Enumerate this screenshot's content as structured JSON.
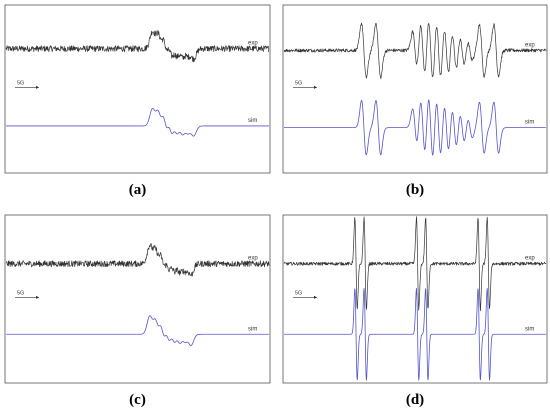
{
  "chart_data": [
    {
      "type": "line",
      "caption": "(a)",
      "scale_bar": "5G",
      "series": [
        {
          "name": "exp",
          "color": "#333333",
          "noise": 0.09,
          "lines": [
            {
              "pos": 0.565,
              "amp": 0.42,
              "w": 0.011
            },
            {
              "pos": 0.585,
              "amp": 0.78,
              "w": 0.011
            },
            {
              "pos": 0.605,
              "amp": 1.0,
              "w": 0.011
            },
            {
              "pos": 0.625,
              "amp": 0.95,
              "w": 0.011
            },
            {
              "pos": 0.645,
              "amp": 0.78,
              "w": 0.011
            },
            {
              "pos": 0.665,
              "amp": 0.62,
              "w": 0.011
            },
            {
              "pos": 0.685,
              "amp": 0.42,
              "w": 0.011
            },
            {
              "pos": 0.705,
              "amp": 0.25,
              "w": 0.011
            }
          ]
        },
        {
          "name": "sim",
          "color": "#5555cc",
          "noise": 0.0,
          "lines": [
            {
              "pos": 0.565,
              "amp": 0.42,
              "w": 0.011
            },
            {
              "pos": 0.585,
              "amp": 0.78,
              "w": 0.011
            },
            {
              "pos": 0.605,
              "amp": 1.0,
              "w": 0.011
            },
            {
              "pos": 0.625,
              "amp": 0.95,
              "w": 0.011
            },
            {
              "pos": 0.645,
              "amp": 0.78,
              "w": 0.011
            },
            {
              "pos": 0.665,
              "amp": 0.62,
              "w": 0.011
            },
            {
              "pos": 0.685,
              "amp": 0.42,
              "w": 0.011
            },
            {
              "pos": 0.705,
              "amp": 0.25,
              "w": 0.011
            }
          ]
        }
      ]
    },
    {
      "type": "line",
      "caption": "(b)",
      "scale_bar": "5G",
      "series": [
        {
          "name": "exp",
          "color": "#333333",
          "noise": 0.05,
          "lines": [
            {
              "pos": 0.305,
              "amp": 0.8,
              "w": 0.009
            },
            {
              "pos": 0.36,
              "amp": 0.8,
              "w": 0.009
            },
            {
              "pos": 0.5,
              "amp": 0.55,
              "w": 0.009
            },
            {
              "pos": 0.53,
              "amp": 0.85,
              "w": 0.009
            },
            {
              "pos": 0.56,
              "amp": 1.0,
              "w": 0.009
            },
            {
              "pos": 0.59,
              "amp": 0.9,
              "w": 0.009
            },
            {
              "pos": 0.62,
              "amp": 0.75,
              "w": 0.009
            },
            {
              "pos": 0.65,
              "amp": 0.6,
              "w": 0.009
            },
            {
              "pos": 0.68,
              "amp": 0.45,
              "w": 0.009
            },
            {
              "pos": 0.71,
              "amp": 0.3,
              "w": 0.009
            },
            {
              "pos": 0.755,
              "amp": 0.75,
              "w": 0.009
            },
            {
              "pos": 0.81,
              "amp": 0.75,
              "w": 0.009
            }
          ]
        },
        {
          "name": "sim",
          "color": "#5555cc",
          "noise": 0.0,
          "lines": [
            {
              "pos": 0.305,
              "amp": 0.8,
              "w": 0.009
            },
            {
              "pos": 0.36,
              "amp": 0.8,
              "w": 0.009
            },
            {
              "pos": 0.5,
              "amp": 0.55,
              "w": 0.009
            },
            {
              "pos": 0.53,
              "amp": 0.85,
              "w": 0.009
            },
            {
              "pos": 0.56,
              "amp": 1.0,
              "w": 0.009
            },
            {
              "pos": 0.59,
              "amp": 0.9,
              "w": 0.009
            },
            {
              "pos": 0.62,
              "amp": 0.75,
              "w": 0.009
            },
            {
              "pos": 0.65,
              "amp": 0.6,
              "w": 0.009
            },
            {
              "pos": 0.68,
              "amp": 0.45,
              "w": 0.009
            },
            {
              "pos": 0.71,
              "amp": 0.3,
              "w": 0.009
            },
            {
              "pos": 0.755,
              "amp": 0.75,
              "w": 0.009
            },
            {
              "pos": 0.81,
              "amp": 0.75,
              "w": 0.009
            }
          ]
        }
      ]
    },
    {
      "type": "line",
      "caption": "(c)",
      "scale_bar": "5G",
      "series": [
        {
          "name": "exp",
          "color": "#333333",
          "noise": 0.09,
          "lines": [
            {
              "pos": 0.555,
              "amp": 0.45,
              "w": 0.011
            },
            {
              "pos": 0.575,
              "amp": 0.8,
              "w": 0.011
            },
            {
              "pos": 0.595,
              "amp": 1.0,
              "w": 0.011
            },
            {
              "pos": 0.615,
              "amp": 0.95,
              "w": 0.011
            },
            {
              "pos": 0.635,
              "amp": 0.82,
              "w": 0.011
            },
            {
              "pos": 0.655,
              "amp": 0.65,
              "w": 0.011
            },
            {
              "pos": 0.675,
              "amp": 0.45,
              "w": 0.011
            },
            {
              "pos": 0.695,
              "amp": 0.28,
              "w": 0.011
            }
          ]
        },
        {
          "name": "sim",
          "color": "#5555cc",
          "noise": 0.0,
          "lines": [
            {
              "pos": 0.555,
              "amp": 0.45,
              "w": 0.011
            },
            {
              "pos": 0.575,
              "amp": 0.8,
              "w": 0.011
            },
            {
              "pos": 0.595,
              "amp": 1.0,
              "w": 0.011
            },
            {
              "pos": 0.615,
              "amp": 0.95,
              "w": 0.011
            },
            {
              "pos": 0.635,
              "amp": 0.82,
              "w": 0.011
            },
            {
              "pos": 0.655,
              "amp": 0.65,
              "w": 0.011
            },
            {
              "pos": 0.675,
              "amp": 0.45,
              "w": 0.011
            },
            {
              "pos": 0.695,
              "amp": 0.28,
              "w": 0.011
            }
          ]
        }
      ]
    },
    {
      "type": "line",
      "caption": "(d)",
      "scale_bar": "5G",
      "series": [
        {
          "name": "exp",
          "color": "#333333",
          "noise": 0.035,
          "lines": [
            {
              "pos": 0.275,
              "amp": 1.0,
              "w": 0.0045
            },
            {
              "pos": 0.31,
              "amp": 1.0,
              "w": 0.0045
            },
            {
              "pos": 0.51,
              "amp": 1.0,
              "w": 0.0045
            },
            {
              "pos": 0.545,
              "amp": 1.0,
              "w": 0.0045
            },
            {
              "pos": 0.745,
              "amp": 1.0,
              "w": 0.0045
            },
            {
              "pos": 0.78,
              "amp": 1.0,
              "w": 0.0045
            }
          ]
        },
        {
          "name": "sim",
          "color": "#5555cc",
          "noise": 0.0,
          "lines": [
            {
              "pos": 0.275,
              "amp": 1.0,
              "w": 0.0045
            },
            {
              "pos": 0.31,
              "amp": 1.0,
              "w": 0.0045
            },
            {
              "pos": 0.51,
              "amp": 1.0,
              "w": 0.0045
            },
            {
              "pos": 0.545,
              "amp": 1.0,
              "w": 0.0045
            },
            {
              "pos": 0.745,
              "amp": 1.0,
              "w": 0.0045
            },
            {
              "pos": 0.78,
              "amp": 1.0,
              "w": 0.0045
            }
          ]
        }
      ]
    }
  ]
}
